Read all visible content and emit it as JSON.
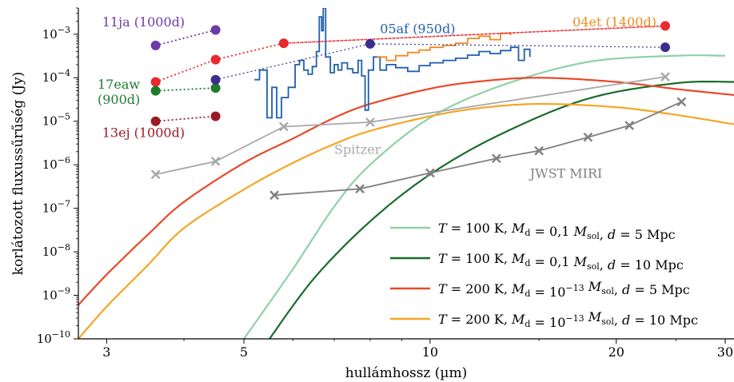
{
  "chart_data": {
    "type": "line",
    "xlabel": "hullámhossz (µm)",
    "ylabel": "korlátozott fluxussűrűség (Jy)",
    "xscale": "log",
    "yscale": "log",
    "xlim": [
      2.7,
      31
    ],
    "ylim": [
      1e-10,
      0.004
    ],
    "xticks": [
      3,
      5,
      10,
      20,
      30
    ],
    "yticks": [
      1e-10,
      1e-09,
      1e-08,
      1e-07,
      1e-06,
      1e-05,
      0.0001,
      0.001
    ],
    "ytick_labels": [
      {
        "base": "10",
        "exp": "−10"
      },
      {
        "base": "10",
        "exp": "−9"
      },
      {
        "base": "10",
        "exp": "−8"
      },
      {
        "base": "10",
        "exp": "−7"
      },
      {
        "base": "10",
        "exp": "−6"
      },
      {
        "base": "10",
        "exp": "−5"
      },
      {
        "base": "10",
        "exp": "−4"
      },
      {
        "base": "10",
        "exp": "−3"
      }
    ],
    "legend_position": "lower-right",
    "colors": {
      "light_green": "#8fd1a6",
      "dark_green": "#1a6b2a",
      "red_orange": "#e8482a",
      "orange": "#f5a623",
      "purple": "#6f3aa6",
      "red": "#e8292f",
      "green": "#1f7a2e",
      "dark_red": "#9b1b25",
      "indigo": "#3a2d8c",
      "blue": "#1f5fb0",
      "spec_orange": "#f0891e",
      "gray_light": "#a8a8a8",
      "gray_dark": "#808080"
    },
    "legend": [
      {
        "T": "100",
        "Md": "0,1",
        "Md_exp": "",
        "d": "5",
        "color": "#8fd1a6"
      },
      {
        "T": "100",
        "Md": "0,1",
        "Md_exp": "",
        "d": "10",
        "color": "#1a6b2a"
      },
      {
        "T": "200",
        "Md": "10",
        "Md_exp": "−13",
        "d": "5",
        "color": "#e8482a"
      },
      {
        "T": "200",
        "Md": "10",
        "Md_exp": "−13",
        "d": "10",
        "color": "#f5a623"
      }
    ],
    "legend_text": {
      "T": "T",
      "eq": " = ",
      "K": " K, ",
      "M": "M",
      "d_sub": "d",
      "sol_sub": "sol",
      "dist": "d",
      "Mpc": " Mpc",
      "comma": ", "
    },
    "curves": [
      {
        "name": "T=100K d=5Mpc",
        "color": "#8fd1a6",
        "points": [
          [
            5.0,
            1e-10
          ],
          [
            6.0,
            4e-09
          ],
          [
            7.0,
            1.1e-07
          ],
          [
            8.0,
            1e-06
          ],
          [
            10.0,
            1.2e-05
          ],
          [
            13.0,
            6.5e-05
          ],
          [
            18.0,
            0.00023
          ],
          [
            25.0,
            0.00032
          ],
          [
            30.0,
            0.00032
          ]
        ]
      },
      {
        "name": "T=100K d=10Mpc",
        "color": "#1a6b2a",
        "points": [
          [
            5.5,
            1e-10
          ],
          [
            6.5,
            2.5e-09
          ],
          [
            8.0,
            5e-08
          ],
          [
            10.0,
            6e-07
          ],
          [
            13.0,
            5e-06
          ],
          [
            18.0,
            3.3e-05
          ],
          [
            25.0,
            7.5e-05
          ],
          [
            31.0,
            8e-05
          ]
        ]
      },
      {
        "name": "T=200K d=5Mpc",
        "color": "#e8482a",
        "points": [
          [
            2.7,
            6e-10
          ],
          [
            3.0,
            3e-09
          ],
          [
            3.5,
            2.5e-08
          ],
          [
            4.0,
            1.4e-07
          ],
          [
            5.0,
            1.1e-06
          ],
          [
            6.0,
            4e-06
          ],
          [
            7.0,
            1.2e-05
          ],
          [
            8.0,
            2.5e-05
          ],
          [
            10.0,
            5.6e-05
          ],
          [
            12.0,
            8.2e-05
          ],
          [
            15.0,
            0.0001
          ],
          [
            20.0,
            8e-05
          ],
          [
            25.0,
            5.5e-05
          ],
          [
            31.0,
            4e-05
          ]
        ]
      },
      {
        "name": "T=200K d=10Mpc",
        "color": "#f5a623",
        "points": [
          [
            2.7,
            1e-10
          ],
          [
            3.0,
            5.5e-10
          ],
          [
            3.5,
            5e-09
          ],
          [
            4.0,
            3.5e-08
          ],
          [
            5.0,
            2.7e-07
          ],
          [
            6.0,
            1.1e-06
          ],
          [
            7.0,
            3e-06
          ],
          [
            8.0,
            6e-06
          ],
          [
            10.0,
            1.3e-05
          ],
          [
            12.0,
            2e-05
          ],
          [
            15.0,
            2.5e-05
          ],
          [
            20.0,
            2.1e-05
          ],
          [
            25.0,
            1.4e-05
          ],
          [
            31.0,
            8.5e-06
          ]
        ]
      }
    ],
    "limit_lines": [
      {
        "name": "Spitzer",
        "color": "#a8a8a8",
        "points": [
          [
            3.6,
            6e-07
          ],
          [
            4.5,
            1.2e-06
          ],
          [
            5.8,
            7.5e-06
          ],
          [
            8.0,
            9.5e-06
          ],
          [
            24.0,
            0.000105
          ]
        ]
      },
      {
        "name": "JWST MIRI",
        "color": "#808080",
        "points": [
          [
            5.6,
            2e-07
          ],
          [
            7.7,
            2.8e-07
          ],
          [
            10.0,
            6.5e-07
          ],
          [
            12.8,
            1.4e-06
          ],
          [
            15.0,
            2.1e-06
          ],
          [
            18.0,
            4.3e-06
          ],
          [
            21.0,
            8e-06
          ],
          [
            25.5,
            2.8e-05
          ]
        ]
      }
    ],
    "limit_labels": [
      {
        "text": "Spitzer",
        "color": "#a8a8a8",
        "x": 7.0,
        "y": 1.8e-06
      },
      {
        "text": "JWST MIRI",
        "color": "#808080",
        "x": 14.5,
        "y": 5e-07
      }
    ],
    "photometry": [
      {
        "label": "11ja (1000d)",
        "color": "#6f3aa6",
        "points": [
          [
            3.6,
            0.00055
          ],
          [
            4.5,
            0.00125
          ]
        ]
      },
      {
        "label": "04et (1400d)",
        "color": "#e8292f",
        "points": [
          [
            3.6,
            8e-05
          ],
          [
            4.5,
            0.00026
          ],
          [
            5.8,
            0.00062
          ],
          [
            24.0,
            0.00155
          ]
        ]
      },
      {
        "label": "17eaw (900d)",
        "color": "#1f7a2e",
        "points": [
          [
            3.6,
            5e-05
          ],
          [
            4.5,
            5.8e-05
          ]
        ]
      },
      {
        "label": "13ej (1000d)",
        "color": "#9b1b25",
        "points": [
          [
            3.6,
            1e-05
          ],
          [
            4.5,
            1.3e-05
          ]
        ]
      },
      {
        "label": "05af (950d)",
        "color": "#3a2d8c",
        "points": [
          [
            4.5,
            9e-05
          ],
          [
            8.0,
            0.0006
          ],
          [
            24.0,
            0.0005
          ]
        ]
      }
    ],
    "photometry_labels": [
      {
        "text": "11ja (1000d)",
        "color": "#6f3aa6",
        "x": 2.95,
        "y": 0.0015
      },
      {
        "text": "04et (1400d)",
        "color": "#f0891e",
        "x": 17.0,
        "y": 0.0015
      },
      {
        "text": "05af (950d)",
        "color": "#1f5fb0",
        "x": 8.3,
        "y": 0.00105
      },
      {
        "text": "17eaw",
        "color": "#1f7a2e",
        "x": 2.9,
        "y": 5.6e-05
      },
      {
        "text": "(900d)",
        "color": "#1f7a2e",
        "x": 2.9,
        "y": 2.5e-05
      },
      {
        "text": "13ej (1000d)",
        "color": "#9b1b25",
        "x": 2.95,
        "y": 4.3e-06
      }
    ],
    "spectra": [
      {
        "name": "05af spectrum",
        "color": "#1f5fb0",
        "points": [
          [
            5.2,
            9e-05
          ],
          [
            5.3,
            0.00015
          ],
          [
            5.45,
            1.2e-05
          ],
          [
            5.55,
            6e-05
          ],
          [
            5.65,
            1.2e-05
          ],
          [
            5.75,
            3.5e-05
          ],
          [
            5.9,
            6e-05
          ],
          [
            6.05,
            0.0002
          ],
          [
            6.15,
            0.00025
          ],
          [
            6.25,
            0.00015
          ],
          [
            6.35,
            0.00012
          ],
          [
            6.45,
            0.00018
          ],
          [
            6.55,
            0.0004
          ],
          [
            6.62,
            0.0025
          ],
          [
            6.68,
            0.0012
          ],
          [
            6.72,
            0.004
          ],
          [
            6.78,
            0.0003
          ],
          [
            6.9,
            0.00013
          ],
          [
            7.0,
            0.0002
          ],
          [
            7.1,
            0.00015
          ],
          [
            7.2,
            0.00022
          ],
          [
            7.35,
            0.00016
          ],
          [
            7.5,
            0.00013
          ],
          [
            7.65,
            0.00025
          ],
          [
            7.75,
            0.00011
          ],
          [
            7.85,
            1.8e-05
          ],
          [
            7.95,
            0.00015
          ],
          [
            8.1,
            0.0003
          ],
          [
            8.3,
            0.00015
          ],
          [
            8.5,
            0.0002
          ],
          [
            8.8,
            0.00017
          ],
          [
            9.2,
            0.00014
          ],
          [
            9.6,
            0.00019
          ],
          [
            10.0,
            0.00022
          ],
          [
            10.5,
            0.00025
          ],
          [
            11.0,
            0.00028
          ],
          [
            11.5,
            0.00033
          ],
          [
            12.0,
            0.0004
          ],
          [
            12.5,
            0.00036
          ],
          [
            13.0,
            0.00042
          ],
          [
            13.5,
            0.0005
          ],
          [
            13.9,
            0.00025
          ],
          [
            14.2,
            0.00045
          ],
          [
            14.5,
            0.0003
          ]
        ]
      },
      {
        "name": "04et spectrum",
        "color": "#f0891e",
        "points": [
          [
            8.2,
            0.0003
          ],
          [
            8.5,
            0.00025
          ],
          [
            8.8,
            0.00032
          ],
          [
            9.2,
            0.00038
          ],
          [
            9.6,
            0.00043
          ],
          [
            10.0,
            0.0005
          ],
          [
            10.5,
            0.00055
          ],
          [
            11.0,
            0.00062
          ],
          [
            11.5,
            0.0008
          ],
          [
            12.0,
            0.0009
          ],
          [
            12.5,
            0.00075
          ],
          [
            13.0,
            0.00105
          ],
          [
            13.5,
            0.00095
          ]
        ]
      }
    ],
    "dotted_links": [
      {
        "color": "#3a2d8c",
        "from": [
          4.5,
          9e-05
        ],
        "to": [
          8.0,
          0.0006
        ]
      },
      {
        "color": "#3a2d8c",
        "from": [
          8.0,
          0.0006
        ],
        "to": [
          24.0,
          0.0005
        ]
      },
      {
        "color": "#e8292f",
        "from": [
          5.8,
          0.00062
        ],
        "to": [
          24.0,
          0.00155
        ]
      }
    ]
  }
}
